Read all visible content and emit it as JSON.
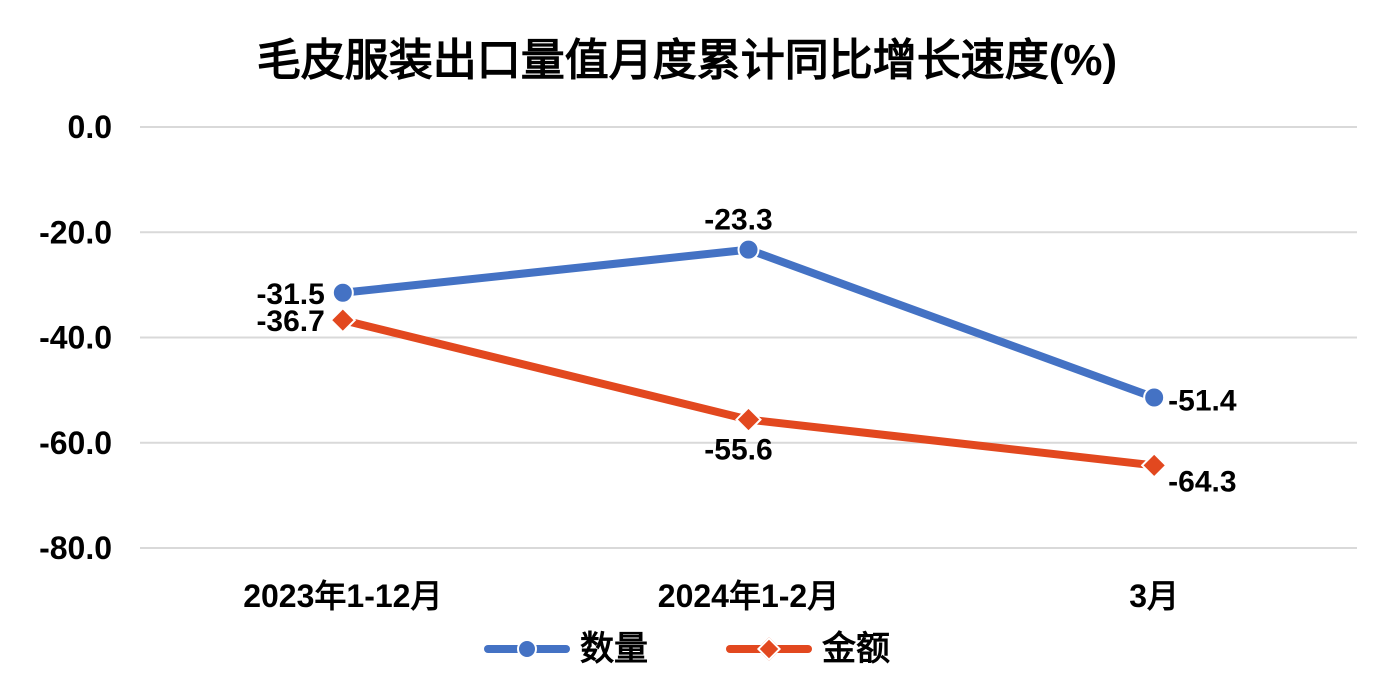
{
  "chart_data": {
    "type": "line",
    "title": "毛皮服装出口量值月度累计同比增长速度(%)",
    "categories": [
      "2023年1-12月",
      "2024年1-2月",
      "3月"
    ],
    "series": [
      {
        "name": "数量",
        "color": "#4472C4",
        "marker": "circle",
        "values": [
          -31.5,
          -23.3,
          -51.4
        ],
        "data_labels": [
          "-31.5",
          "-23.3",
          "-51.4"
        ],
        "label_placements": [
          "left",
          "above",
          "right"
        ]
      },
      {
        "name": "金额",
        "color": "#E2481F",
        "marker": "diamond",
        "values": [
          -36.7,
          -55.6,
          -64.3
        ],
        "data_labels": [
          "-36.7",
          "-55.6",
          "-64.3"
        ],
        "label_placements": [
          "left",
          "below",
          "right-low"
        ]
      }
    ],
    "y_axis": {
      "ticks": [
        0,
        -20,
        -40,
        -60,
        -80
      ],
      "tick_labels": [
        "0.0",
        "-20.0",
        "-40.0",
        "-60.0",
        "-80.0"
      ],
      "range": [
        -80,
        0
      ]
    },
    "xlabel": "",
    "ylabel": "",
    "grid": true,
    "legend_position": "bottom",
    "colors": {
      "grid": "#D9D9D9",
      "text": "#000000",
      "background": "#FFFFFF"
    }
  }
}
